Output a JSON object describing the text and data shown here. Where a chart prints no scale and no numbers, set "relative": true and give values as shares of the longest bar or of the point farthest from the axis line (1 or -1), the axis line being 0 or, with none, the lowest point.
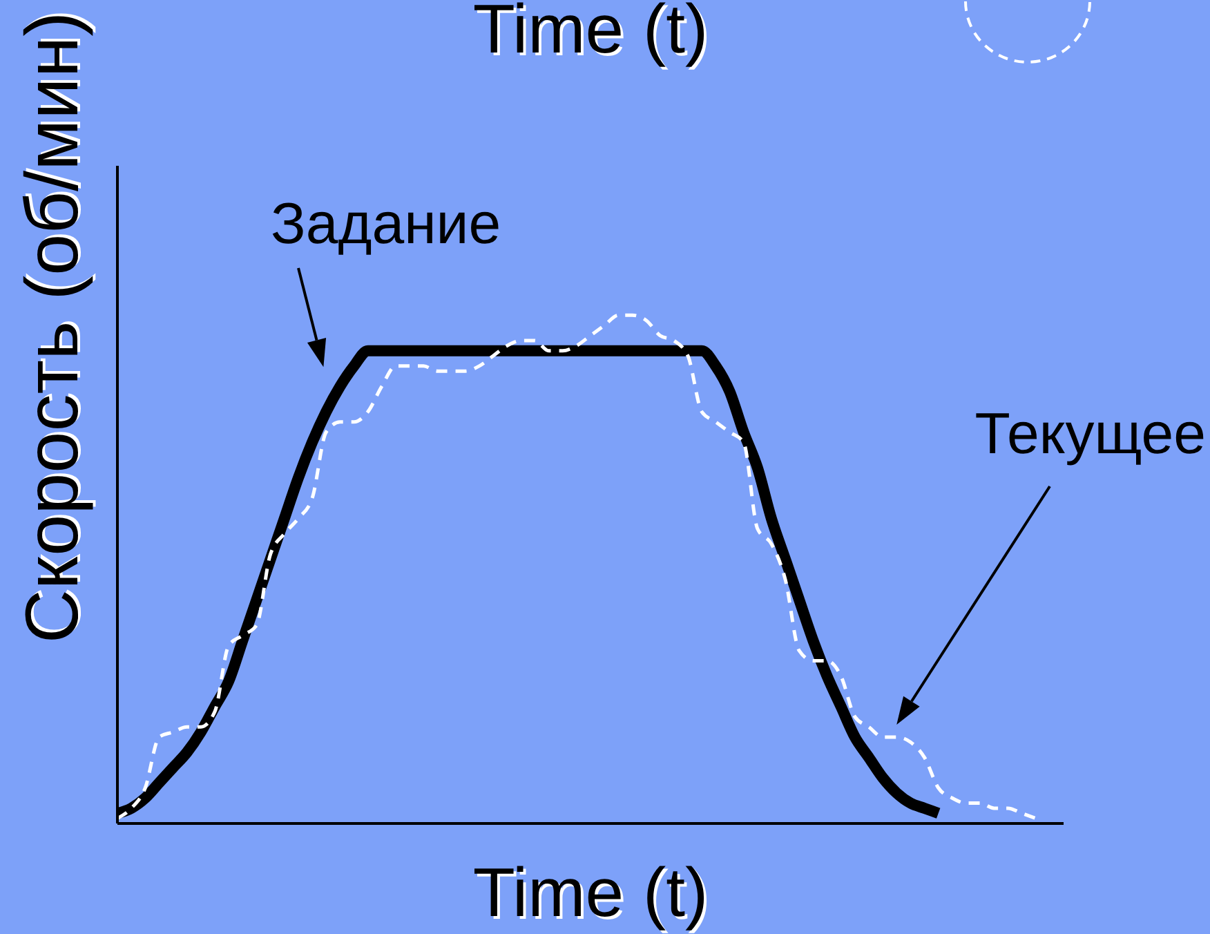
{
  "chart_data": {
    "type": "line",
    "title": "Time (t)",
    "xlabel": "Time (t)",
    "ylabel": "Скорость (об/мин)",
    "relative": true,
    "marker": "none",
    "legend": false,
    "categories": [
      null,
      null,
      null,
      null,
      null,
      null,
      null,
      null,
      null,
      null,
      null,
      null,
      null,
      null,
      null,
      null,
      null,
      null,
      null,
      null,
      null,
      null,
      null,
      null,
      null,
      null,
      null,
      null,
      null,
      null,
      null,
      null,
      null,
      null,
      null,
      null,
      null,
      null,
      null,
      null,
      null,
      null,
      null,
      null,
      null,
      null,
      null,
      null,
      null,
      null,
      null,
      null,
      null,
      null,
      null,
      null,
      null,
      null,
      null,
      null,
      null,
      null,
      null,
      null,
      null,
      null,
      null,
      null,
      null
    ],
    "series": [
      {
        "name": "Задание",
        "color": "#000000",
        "line_style": "solid",
        "values": [
          0.02,
          0.03,
          0.05,
          0.08,
          0.11,
          0.14,
          0.18,
          0.23,
          0.28,
          0.36,
          0.44,
          0.52,
          0.6,
          0.68,
          0.75,
          0.81,
          0.86,
          0.9,
          0.93,
          0.93,
          0.93,
          0.93,
          0.93,
          0.93,
          0.93,
          0.93,
          0.93,
          0.93,
          0.93,
          0.93,
          0.93,
          0.93,
          0.93,
          0.93,
          0.93,
          0.93,
          0.93,
          0.93,
          0.93,
          0.93,
          0.93,
          0.93,
          0.93,
          0.9,
          0.85,
          0.77,
          0.7,
          0.6,
          0.52,
          0.44,
          0.36,
          0.29,
          0.23,
          0.17,
          0.13,
          0.09,
          0.06,
          0.04,
          0.03,
          0.02,
          null,
          null,
          null,
          null,
          null,
          null,
          null,
          null,
          null
        ]
      },
      {
        "name": "Текущее",
        "color": "#ffffff",
        "line_style": "dashed",
        "values": [
          0.01,
          0.03,
          0.07,
          0.17,
          0.18,
          0.19,
          0.19,
          0.22,
          0.35,
          0.37,
          0.39,
          0.53,
          0.57,
          0.6,
          0.64,
          0.77,
          0.79,
          0.79,
          0.81,
          0.86,
          0.9,
          0.9,
          0.9,
          0.89,
          0.89,
          0.89,
          0.9,
          0.92,
          0.94,
          0.95,
          0.95,
          0.93,
          0.93,
          0.94,
          0.96,
          0.98,
          1.0,
          1.0,
          0.99,
          0.96,
          0.95,
          0.92,
          0.81,
          0.79,
          0.77,
          0.75,
          0.58,
          0.55,
          0.48,
          0.34,
          0.32,
          0.32,
          0.29,
          0.21,
          0.19,
          0.17,
          0.17,
          0.16,
          0.13,
          0.07,
          0.05,
          0.04,
          0.04,
          0.03,
          0.03,
          0.02,
          0.01,
          null,
          null
        ]
      }
    ]
  }
}
